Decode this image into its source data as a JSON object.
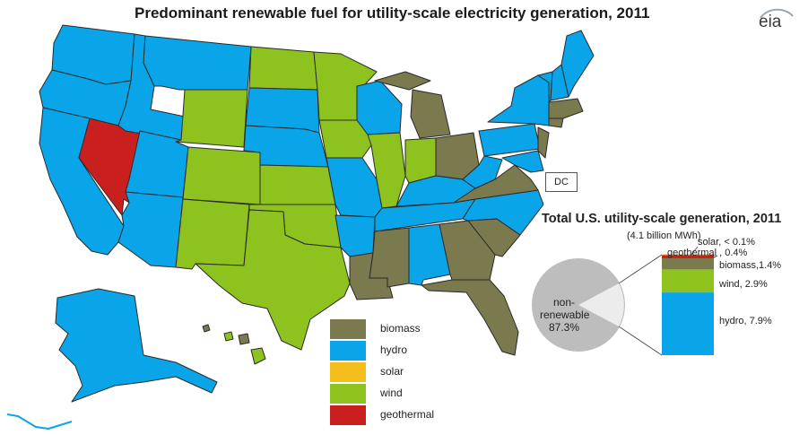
{
  "title": "Predominant renewable fuel for utility-scale electricity generation, 2011",
  "logo": {
    "text": "eia"
  },
  "dc_label": "DC",
  "legend": [
    {
      "label": "biomass",
      "color": "#7b7a4f"
    },
    {
      "label": "hydro",
      "color": "#0aa5e8"
    },
    {
      "label": "solar",
      "color": "#f4bf1d"
    },
    {
      "label": "wind",
      "color": "#8dc21f"
    },
    {
      "label": "geothermal",
      "color": "#c9201f"
    }
  ],
  "inset": {
    "title": "Total U.S. utility-scale  generation, 2011",
    "subtitle": "(4.1 billion MWh)",
    "pie_label": [
      "non-",
      "renewable",
      "87.3%"
    ],
    "bar_labels": {
      "solar": "solar, < 0.1%",
      "geothermal": "geothermal , 0.4%",
      "biomass": "biomass,1.4%",
      "wind": "wind, 2.9%",
      "hydro": "hydro, 7.9%"
    }
  },
  "chart_data": {
    "type": "bar",
    "categories": [
      "non-renewable",
      "hydro",
      "wind",
      "biomass",
      "geothermal",
      "solar"
    ],
    "values": [
      87.3,
      7.9,
      2.9,
      1.4,
      0.4,
      0.05
    ],
    "title": "Total U.S. utility-scale  generation, 2011"
  },
  "colors": {
    "biomass": "#7b7a4f",
    "hydro": "#0aa5e8",
    "solar": "#f4bf1d",
    "wind": "#8dc21f",
    "geothermal": "#c9201f",
    "pie": "#bdbdbd",
    "pie_slice": "#ececec"
  }
}
